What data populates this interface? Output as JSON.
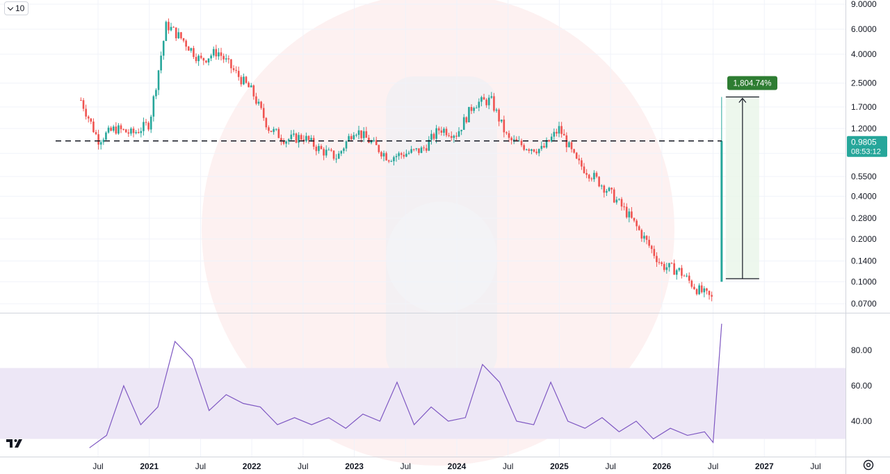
{
  "toolbar": {
    "interval_label": "10"
  },
  "price_axis": {
    "ticks": [
      "9.0000",
      "6.0000",
      "4.0000",
      "2.5000",
      "1.7000",
      "1.2000",
      "0.8000",
      "0.5500",
      "0.4000",
      "0.2800",
      "0.2000",
      "0.1400",
      "0.1000",
      "0.0700"
    ],
    "current_price": "0.9805",
    "countdown": "08:53:12",
    "current_color": "#26a69a"
  },
  "rsi_axis": {
    "ticks": [
      "80.00",
      "60.00",
      "40.00"
    ]
  },
  "time_axis": {
    "labels": [
      {
        "text": "Jul",
        "year": false
      },
      {
        "text": "2021",
        "year": true
      },
      {
        "text": "Jul",
        "year": false
      },
      {
        "text": "2022",
        "year": true
      },
      {
        "text": "Jul",
        "year": false
      },
      {
        "text": "2023",
        "year": true
      },
      {
        "text": "Jul",
        "year": false
      },
      {
        "text": "2024",
        "year": true
      },
      {
        "text": "Jul",
        "year": false
      },
      {
        "text": "2025",
        "year": true
      },
      {
        "text": "Jul",
        "year": false
      },
      {
        "text": "2026",
        "year": true
      },
      {
        "text": "Jul",
        "year": false
      },
      {
        "text": "2027",
        "year": true
      },
      {
        "text": "Jul",
        "year": false
      }
    ]
  },
  "measure": {
    "label": "1,804.74%",
    "color": "#2e7d32"
  },
  "colors": {
    "up": "#26a69a",
    "down": "#ef5350",
    "rsi_line": "#7e57c2",
    "rsi_band": "#ede7f6",
    "dashed": "#131722"
  },
  "chart_data": [
    {
      "type": "candlestick",
      "y_scale": "log",
      "ylim": [
        0.06,
        9.5
      ],
      "x": [
        "2020-05",
        "2020-07",
        "2020-09",
        "2020-11",
        "2021-01",
        "2021-03",
        "2021-05",
        "2021-07",
        "2021-09",
        "2021-11",
        "2022-01",
        "2022-03",
        "2022-05",
        "2022-07",
        "2022-09",
        "2022-11",
        "2023-01",
        "2023-03",
        "2023-05",
        "2023-07",
        "2023-09",
        "2023-11",
        "2024-01",
        "2024-03",
        "2024-05",
        "2024-07",
        "2024-09",
        "2024-11",
        "2025-01",
        "2025-03",
        "2025-05",
        "2025-07",
        "2025-09",
        "2025-11",
        "2026-01",
        "2026-03",
        "2026-05",
        "2026-07",
        "2026-08"
      ],
      "close_approx": [
        1.9,
        1.0,
        1.2,
        1.1,
        1.3,
        6.5,
        5.0,
        3.6,
        4.2,
        3.0,
        2.2,
        1.2,
        1.0,
        1.05,
        0.85,
        0.75,
        1.2,
        0.95,
        0.75,
        0.8,
        0.85,
        1.2,
        1.1,
        1.8,
        1.9,
        1.0,
        0.9,
        0.85,
        1.2,
        0.7,
        0.55,
        0.42,
        0.3,
        0.2,
        0.13,
        0.12,
        0.09,
        0.075,
        0.9805
      ],
      "reference_level": 0.9805,
      "measure_from": 0.105,
      "measure_to": 2.0,
      "measure_pct": "1,804.74%"
    },
    {
      "type": "line",
      "name": "",
      "ylim": [
        20,
        100
      ],
      "band": [
        30,
        70
      ],
      "x": [
        "2020-06",
        "2020-08",
        "2020-10",
        "2020-12",
        "2021-02",
        "2021-04",
        "2021-06",
        "2021-08",
        "2021-10",
        "2021-12",
        "2022-02",
        "2022-04",
        "2022-06",
        "2022-08",
        "2022-10",
        "2022-12",
        "2023-02",
        "2023-04",
        "2023-06",
        "2023-08",
        "2023-10",
        "2023-12",
        "2024-02",
        "2024-04",
        "2024-06",
        "2024-08",
        "2024-10",
        "2024-12",
        "2025-02",
        "2025-04",
        "2025-06",
        "2025-08",
        "2025-10",
        "2025-12",
        "2026-02",
        "2026-04",
        "2026-06",
        "2026-07",
        "2026-08"
      ],
      "values": [
        25,
        32,
        60,
        38,
        48,
        85,
        75,
        46,
        55,
        50,
        48,
        38,
        42,
        38,
        42,
        36,
        44,
        40,
        62,
        38,
        48,
        40,
        42,
        72,
        62,
        40,
        38,
        62,
        40,
        36,
        42,
        34,
        40,
        30,
        36,
        32,
        34,
        28,
        95
      ]
    }
  ]
}
